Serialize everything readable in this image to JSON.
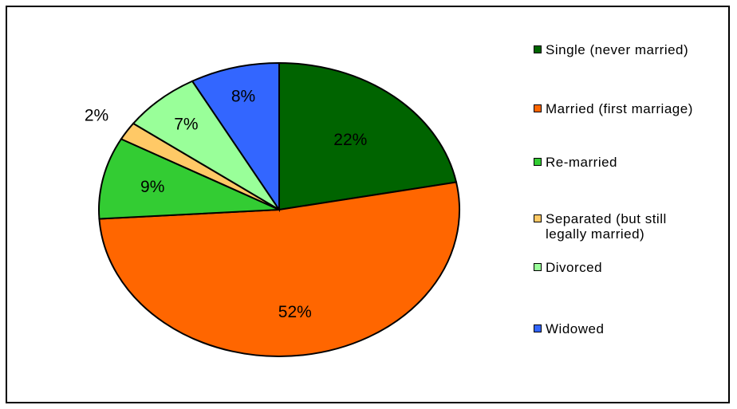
{
  "chart_data": {
    "type": "pie",
    "title": "",
    "categories": [
      "Single (never married)",
      "Married (first marriage)",
      "Re-married",
      "Separated (but still legally married)",
      "Divorced",
      "Widowed"
    ],
    "values": [
      22,
      52,
      9,
      2,
      7,
      8
    ],
    "value_labels": [
      "22%",
      "52%",
      "9%",
      "2%",
      "7%",
      "8%"
    ],
    "colors": [
      "#006400",
      "#FF6600",
      "#33CC33",
      "#FFC966",
      "#99FF99",
      "#3366FF"
    ],
    "start_angle_deg": 0,
    "direction": "clockwise",
    "legend_position": "right"
  },
  "legend": {
    "items": [
      {
        "label": "Single (never married)",
        "color": "#006400"
      },
      {
        "label": "Married (first marriage)",
        "color": "#FF6600"
      },
      {
        "label": "Re-married",
        "color": "#33CC33"
      },
      {
        "label": "Separated (but still legally married)",
        "color": "#FFC966"
      },
      {
        "label": "Divorced",
        "color": "#99FF99"
      },
      {
        "label": "Widowed",
        "color": "#3366FF"
      }
    ]
  }
}
